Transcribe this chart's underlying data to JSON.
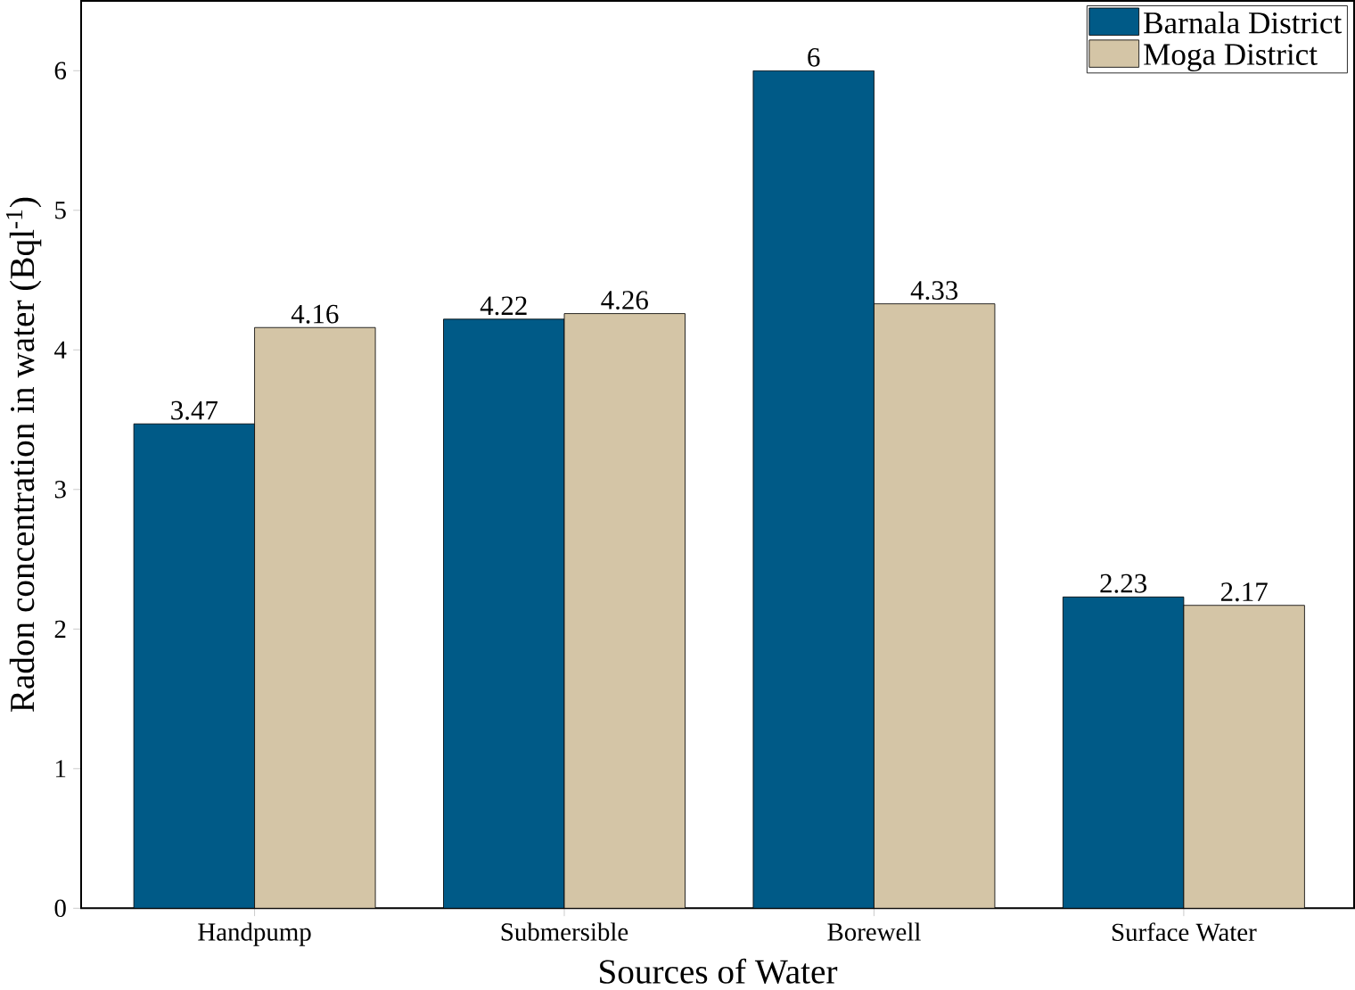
{
  "chart_data": {
    "type": "bar",
    "xlabel": "Sources of Water",
    "ylabel": "Radon concentration in water (Bql$^{-1}$)",
    "categories": [
      "Handpump",
      "Submersible",
      "Borewell",
      "Surface Water"
    ],
    "series": [
      {
        "name": "Barnala District",
        "color": "#005a87",
        "values": [
          3.47,
          4.22,
          6,
          2.23
        ]
      },
      {
        "name": "Moga District",
        "color": "#d4c5a6",
        "values": [
          4.16,
          4.26,
          4.33,
          2.17
        ]
      }
    ],
    "ylim": [
      0,
      6.5
    ],
    "yticks": [
      0,
      1,
      2,
      3,
      4,
      5,
      6
    ],
    "legend": "top right",
    "data_labels": true,
    "grid": false
  }
}
